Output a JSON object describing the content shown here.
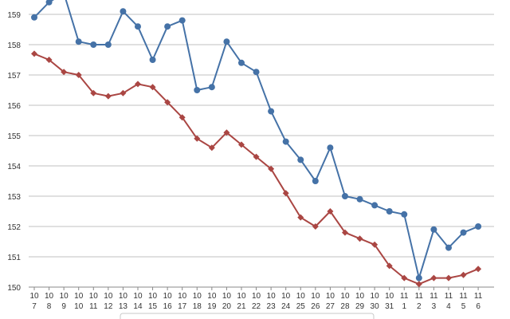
{
  "chart_data": {
    "type": "line",
    "categories": [
      {
        "month": "10",
        "day": "7"
      },
      {
        "month": "10",
        "day": "8"
      },
      {
        "month": "10",
        "day": "9"
      },
      {
        "month": "10",
        "day": "10"
      },
      {
        "month": "10",
        "day": "11"
      },
      {
        "month": "10",
        "day": "12"
      },
      {
        "month": "10",
        "day": "13"
      },
      {
        "month": "10",
        "day": "14"
      },
      {
        "month": "10",
        "day": "15"
      },
      {
        "month": "10",
        "day": "16"
      },
      {
        "month": "10",
        "day": "17"
      },
      {
        "month": "10",
        "day": "18"
      },
      {
        "month": "10",
        "day": "19"
      },
      {
        "month": "10",
        "day": "20"
      },
      {
        "month": "10",
        "day": "21"
      },
      {
        "month": "10",
        "day": "22"
      },
      {
        "month": "10",
        "day": "23"
      },
      {
        "month": "10",
        "day": "24"
      },
      {
        "month": "10",
        "day": "25"
      },
      {
        "month": "10",
        "day": "26"
      },
      {
        "month": "10",
        "day": "27"
      },
      {
        "month": "10",
        "day": "28"
      },
      {
        "month": "10",
        "day": "29"
      },
      {
        "month": "10",
        "day": "30"
      },
      {
        "month": "10",
        "day": "31"
      },
      {
        "month": "11",
        "day": "1"
      },
      {
        "month": "11",
        "day": "2"
      },
      {
        "month": "11",
        "day": "3"
      },
      {
        "month": "11",
        "day": "4"
      },
      {
        "month": "11",
        "day": "5"
      },
      {
        "month": "11",
        "day": "6"
      }
    ],
    "series": [
      {
        "color": "#4572a7",
        "marker": "circle",
        "values": [
          158.9,
          159.4,
          159.7,
          158.1,
          158.0,
          158.0,
          159.1,
          158.6,
          157.5,
          158.6,
          158.8,
          156.5,
          156.6,
          158.1,
          157.4,
          157.1,
          155.8,
          154.8,
          154.2,
          153.5,
          154.6,
          153.0,
          152.9,
          152.7,
          152.5,
          152.4,
          150.3,
          151.9,
          151.3,
          151.8,
          152.0
        ]
      },
      {
        "color": "#aa4643",
        "marker": "diamond",
        "values": [
          157.7,
          157.5,
          157.1,
          157.0,
          156.4,
          156.3,
          156.4,
          156.7,
          156.6,
          156.1,
          155.6,
          154.9,
          154.6,
          155.1,
          154.7,
          154.3,
          153.9,
          153.1,
          152.3,
          152.0,
          152.5,
          151.8,
          151.6,
          151.4,
          150.7,
          150.3,
          150.1,
          150.3,
          150.3,
          150.4,
          150.6
        ]
      }
    ],
    "yticks": [
      "150",
      "151",
      "152",
      "153",
      "154",
      "155",
      "156",
      "157",
      "158",
      "159"
    ],
    "ylim": [
      150,
      159.6
    ],
    "grid": true,
    "legend_placement": "bottom-center"
  }
}
